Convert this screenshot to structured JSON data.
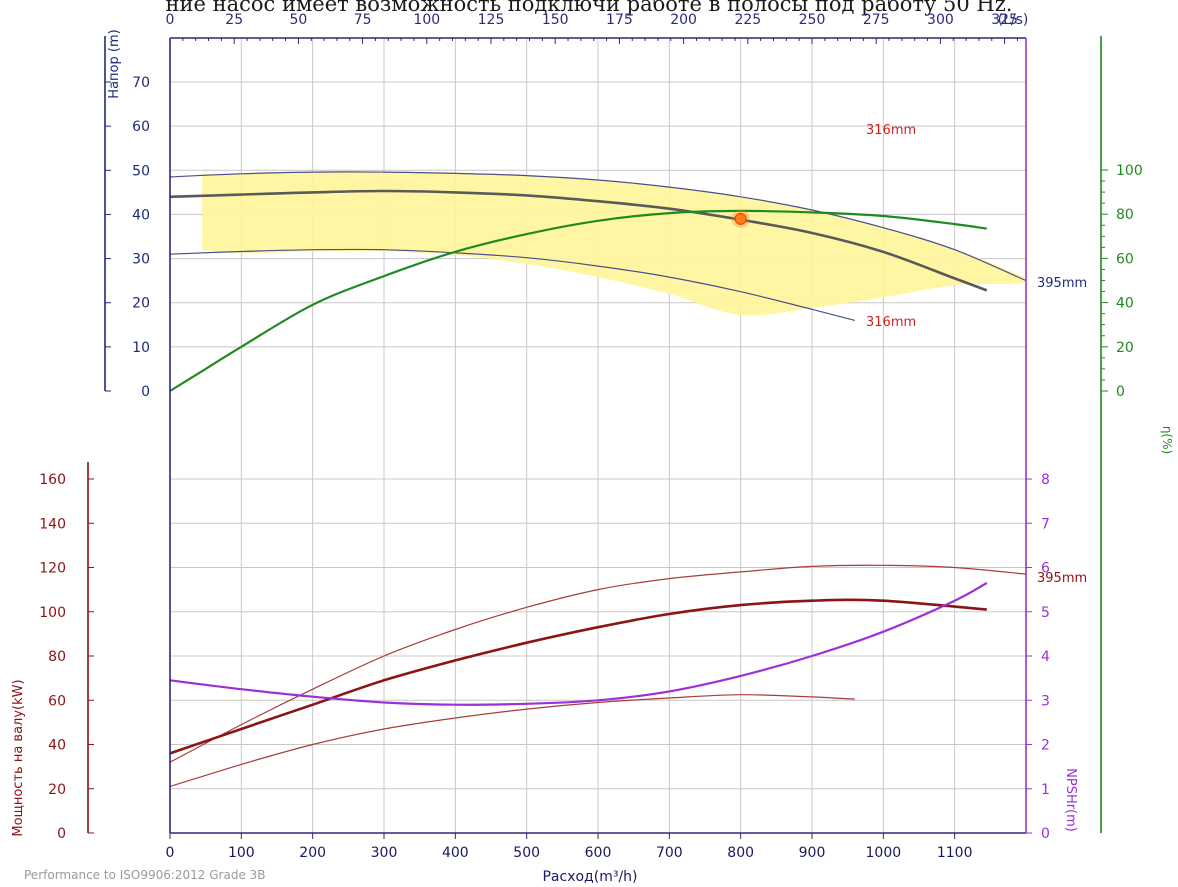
{
  "header_caption": "ние насос имеет возможность подключи работе в полосы под работу 50 Hz.",
  "footer": "Performance to  ISO9906:2012 Grade 3B",
  "chart_data": {
    "type": "line",
    "title": "",
    "x_bottom": {
      "label": "Расход(m³/h)",
      "min": 0,
      "max": 1200,
      "ticks": [
        0,
        100,
        200,
        300,
        400,
        500,
        600,
        700,
        800,
        900,
        1000,
        1100
      ]
    },
    "x_top": {
      "unit_label": "(L/s)",
      "min": 0,
      "max": 333.33,
      "ticks": [
        0,
        25,
        50,
        75,
        100,
        125,
        150,
        175,
        200,
        225,
        250,
        275,
        300,
        325
      ]
    },
    "head_axis": {
      "label": "Напор (m)",
      "min": 0,
      "max": 70,
      "ticks": [
        0,
        10,
        20,
        30,
        40,
        50,
        60,
        70
      ]
    },
    "eff_axis": {
      "label": "η(%)",
      "min": 0,
      "max": 100,
      "ticks": [
        0,
        20,
        40,
        60,
        80,
        100
      ]
    },
    "power_axis": {
      "label": "Мощность на валу(kW)",
      "min": 0,
      "max": 160,
      "ticks": [
        0,
        20,
        40,
        60,
        80,
        100,
        120,
        140,
        160
      ]
    },
    "npsh_axis": {
      "label": "NPSHr(m)",
      "min": 0,
      "max": 8,
      "ticks": [
        0,
        1,
        2,
        3,
        4,
        5,
        6,
        7,
        8
      ]
    },
    "grid": true,
    "labels": {
      "max_diameter": "395mm",
      "min_diameter": "316mm"
    },
    "head_curves": [
      {
        "name": "395mm",
        "x": [
          0,
          100,
          200,
          300,
          400,
          500,
          600,
          700,
          800,
          900,
          1000,
          1100,
          1200
        ],
        "y": [
          48.5,
          49.2,
          49.6,
          49.6,
          49.3,
          48.8,
          47.8,
          46.2,
          44.0,
          41.0,
          37.0,
          32.0,
          25.0
        ]
      },
      {
        "name": "",
        "x": [
          0,
          100,
          200,
          300,
          400,
          500,
          600,
          700,
          800,
          900,
          1000,
          1100,
          1145
        ],
        "y": [
          44.0,
          44.5,
          45.0,
          45.3,
          45.0,
          44.3,
          43.0,
          41.3,
          38.8,
          35.8,
          31.5,
          25.5,
          22.8
        ]
      },
      {
        "name": "316mm",
        "x": [
          0,
          100,
          200,
          300,
          400,
          500,
          600,
          700,
          800,
          900,
          960
        ],
        "y": [
          31.0,
          31.6,
          32.0,
          32.0,
          31.3,
          30.2,
          28.3,
          25.8,
          22.5,
          18.5,
          16.0
        ]
      }
    ],
    "operating_range": {
      "x": [
        45,
        110,
        200,
        300,
        400,
        500,
        600,
        700,
        800,
        900,
        1000,
        1100,
        1200,
        1100,
        1000,
        900,
        800,
        700,
        600,
        500,
        400,
        300,
        200,
        110,
        45
      ],
      "y": [
        49.2,
        49.4,
        49.7,
        49.7,
        49.4,
        48.9,
        47.9,
        46.3,
        44.1,
        41.1,
        37.1,
        32.1,
        25.0,
        24.0,
        21.2,
        18.8,
        17.2,
        22.0,
        25.8,
        28.8,
        30.8,
        31.6,
        31.6,
        31.2,
        32.0
      ]
    },
    "operating_point": {
      "x": 800,
      "y": 39.0
    },
    "efficiency": {
      "x": [
        0,
        50,
        100,
        200,
        300,
        400,
        500,
        600,
        700,
        800,
        900,
        1000,
        1100,
        1145
      ],
      "y": [
        0,
        10,
        20,
        39,
        52,
        63,
        71,
        77,
        80.5,
        81.5,
        80.8,
        79.2,
        75.5,
        73.5
      ]
    },
    "power_curves": [
      {
        "name": "395mm",
        "x": [
          0,
          100,
          200,
          300,
          400,
          500,
          600,
          700,
          800,
          900,
          1000,
          1100,
          1200
        ],
        "y": [
          32,
          49,
          65,
          80,
          92,
          102,
          110,
          115,
          118,
          120.5,
          121,
          120,
          117
        ]
      },
      {
        "name": "",
        "x": [
          0,
          100,
          200,
          300,
          400,
          500,
          600,
          700,
          800,
          900,
          1000,
          1145
        ],
        "y": [
          36,
          47,
          58,
          69,
          78,
          86,
          93,
          99,
          103,
          105,
          105,
          101
        ]
      },
      {
        "name": "",
        "x": [
          0,
          100,
          200,
          300,
          400,
          500,
          600,
          700,
          800,
          900,
          960
        ],
        "y": [
          21,
          31,
          40,
          47,
          52,
          56,
          59,
          61,
          62.5,
          61.5,
          60.5
        ]
      }
    ],
    "npsh": {
      "x": [
        0,
        100,
        200,
        300,
        400,
        500,
        600,
        700,
        800,
        900,
        1000,
        1100,
        1145
      ],
      "y": [
        3.45,
        3.25,
        3.08,
        2.95,
        2.9,
        2.92,
        3.0,
        3.2,
        3.55,
        4.0,
        4.55,
        5.25,
        5.65
      ]
    },
    "colors": {
      "head_axis": "#1f2a7a",
      "eff": "#1f8a1f",
      "power": "#8b1414",
      "npsh": "#9b30d9",
      "range": "#fff59a",
      "grid": "#c8c8c8",
      "point": "#ff7a1a",
      "dia_label": "#d81f1f"
    }
  }
}
